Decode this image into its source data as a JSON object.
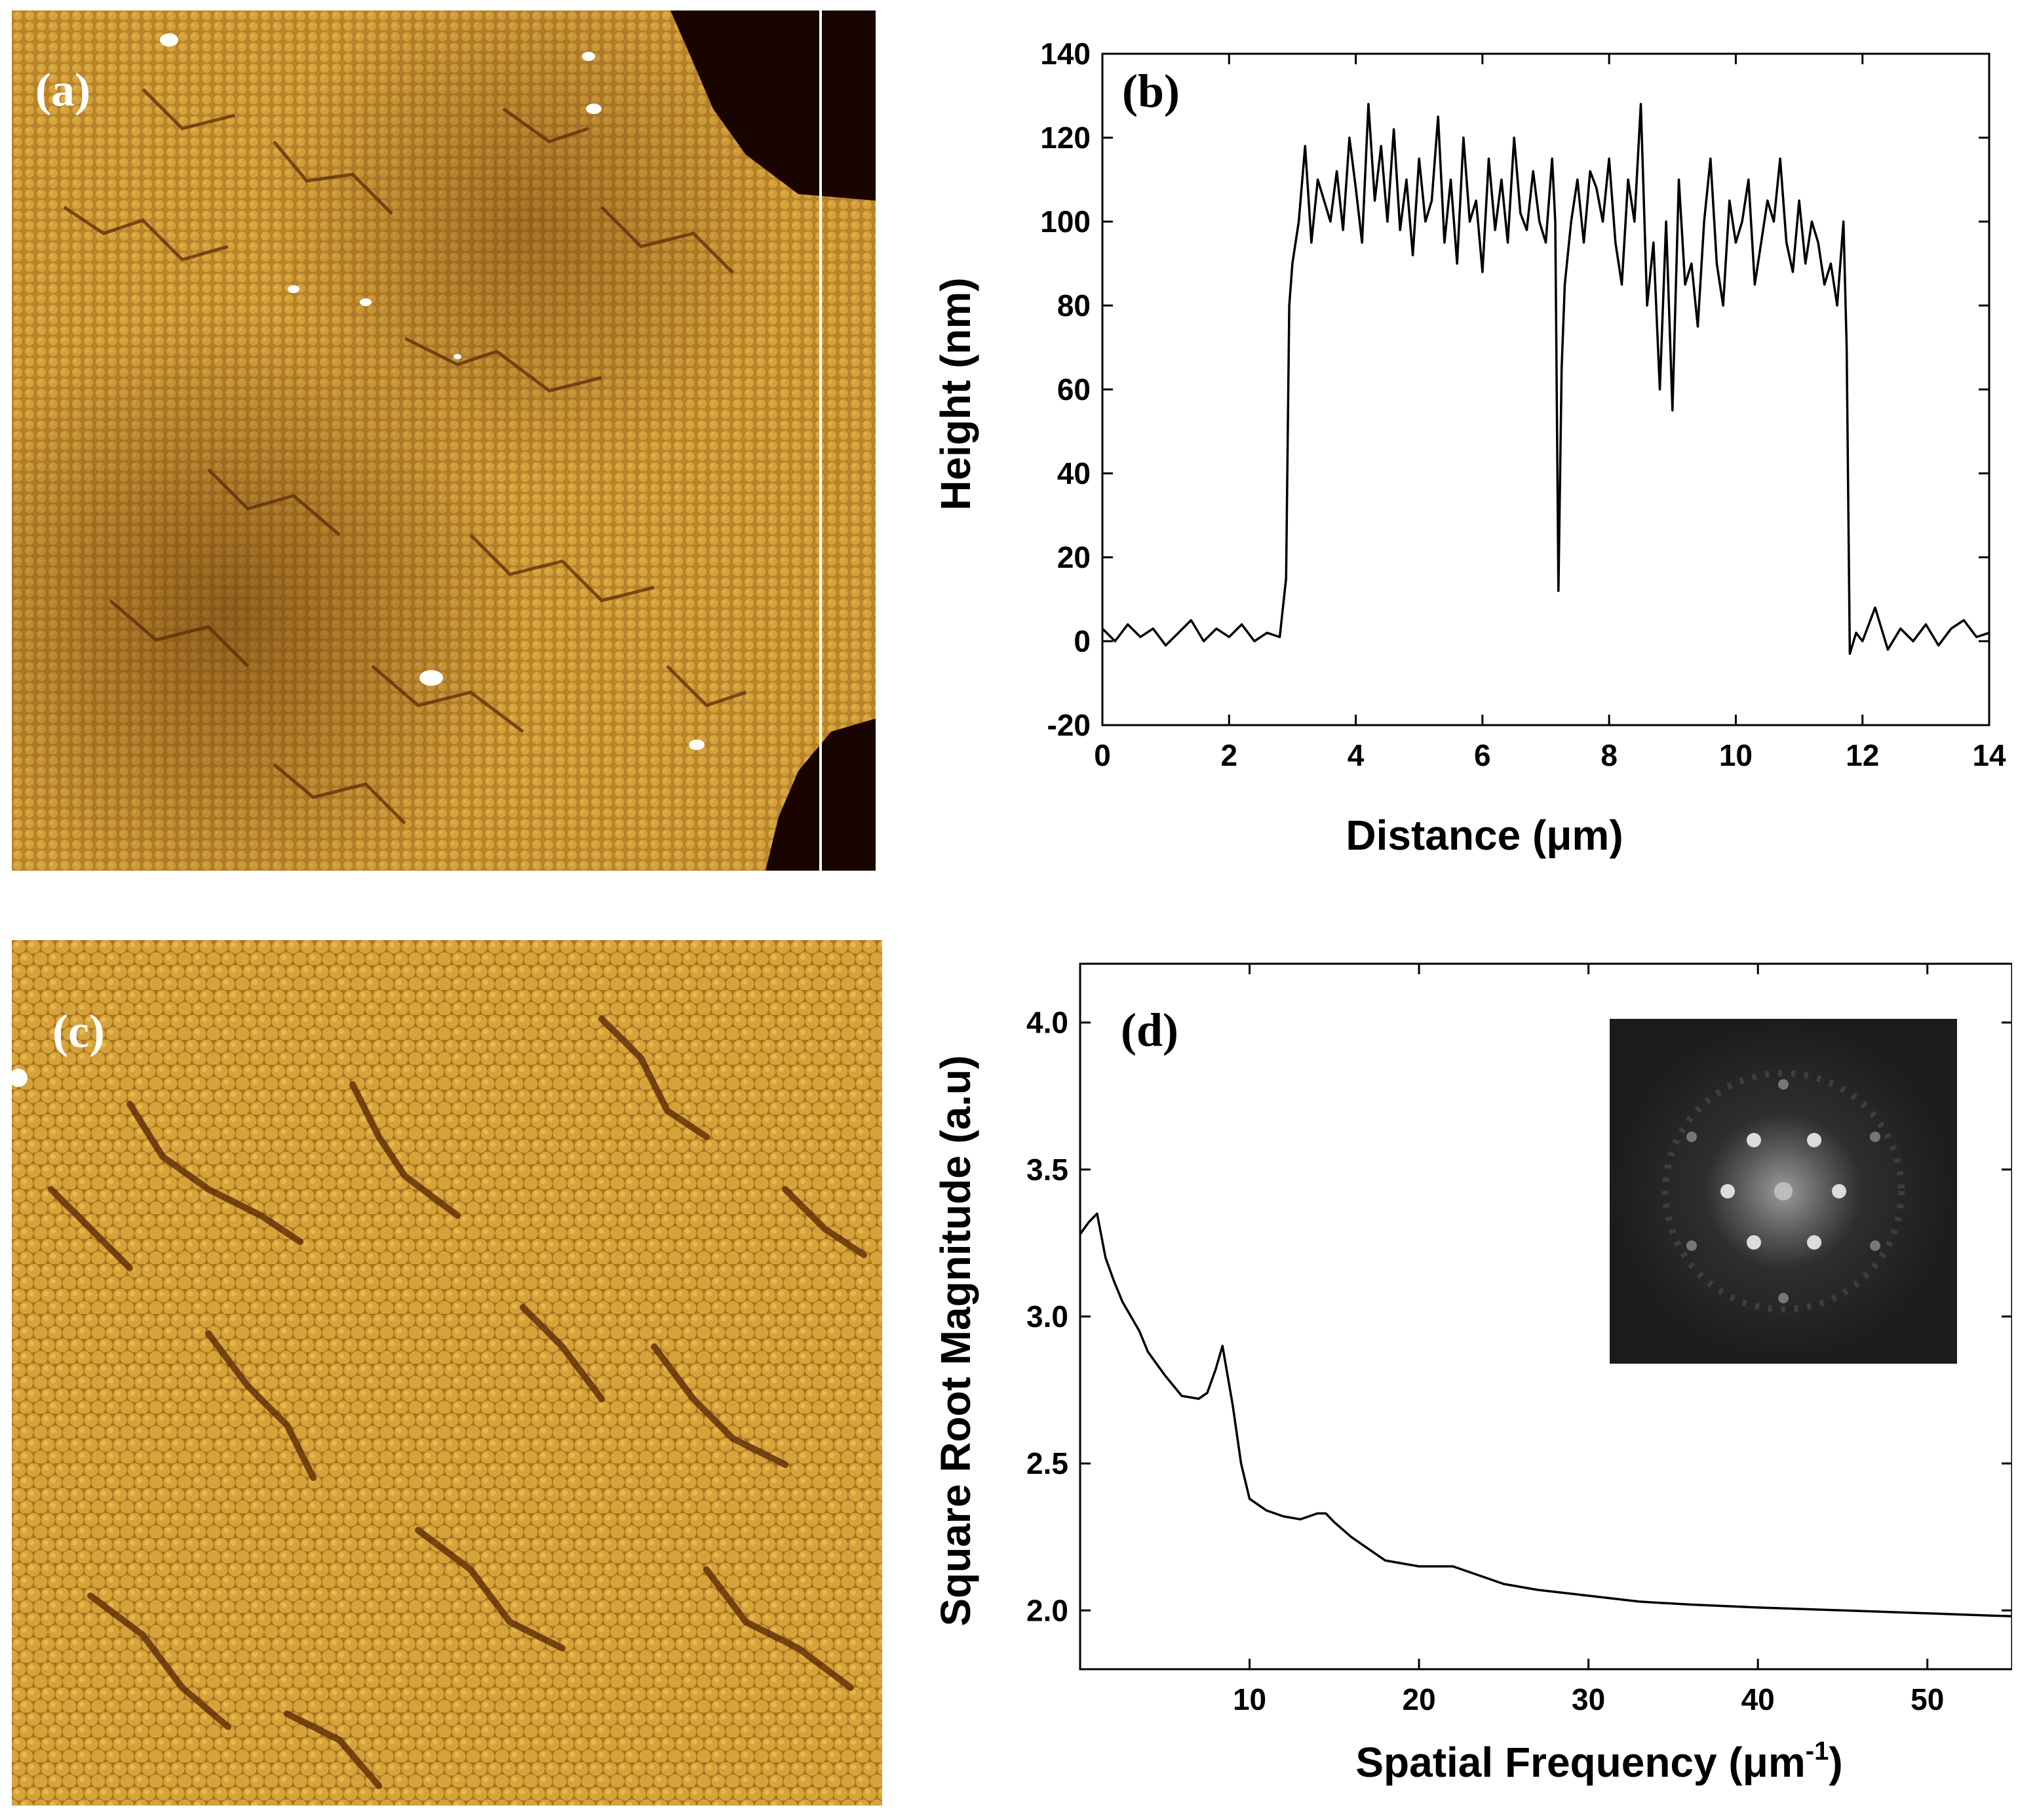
{
  "panels": {
    "a": {
      "label": "(a)"
    },
    "b": {
      "label": "(b)"
    },
    "c": {
      "label": "(c)"
    },
    "d": {
      "label": "(d)"
    }
  },
  "colors": {
    "afm_base": "#c08a2a",
    "afm_light": "#e2b546",
    "afm_dark": "#6b3a0e",
    "afm_hole": "#1a0400",
    "fft_bg": "#1c1c1c",
    "line": "#000000"
  },
  "chart_data": [
    {
      "type": "line",
      "panel": "b",
      "xlabel": "Distance (μm)",
      "ylabel": "Height (nm)",
      "xlim": [
        0,
        14
      ],
      "ylim": [
        -20,
        140
      ],
      "xticks": [
        0,
        2,
        4,
        6,
        8,
        10,
        12,
        14
      ],
      "yticks": [
        -20,
        0,
        20,
        40,
        60,
        80,
        100,
        120,
        140
      ],
      "grid": false,
      "series": [
        {
          "x": [
            0.0,
            0.2,
            0.4,
            0.6,
            0.8,
            1.0,
            1.2,
            1.4,
            1.6,
            1.8,
            2.0,
            2.2,
            2.4,
            2.6,
            2.8,
            2.9,
            2.95,
            3.0,
            3.1,
            3.2,
            3.3,
            3.4,
            3.5,
            3.6,
            3.7,
            3.8,
            3.9,
            4.0,
            4.1,
            4.2,
            4.3,
            4.4,
            4.5,
            4.6,
            4.7,
            4.8,
            4.9,
            5.0,
            5.1,
            5.2,
            5.3,
            5.4,
            5.5,
            5.6,
            5.7,
            5.8,
            5.9,
            6.0,
            6.1,
            6.2,
            6.3,
            6.4,
            6.5,
            6.6,
            6.7,
            6.8,
            6.9,
            7.0,
            7.1,
            7.15,
            7.2,
            7.25,
            7.3,
            7.4,
            7.5,
            7.6,
            7.7,
            7.8,
            7.9,
            8.0,
            8.1,
            8.2,
            8.3,
            8.4,
            8.5,
            8.6,
            8.7,
            8.8,
            8.9,
            9.0,
            9.1,
            9.2,
            9.3,
            9.4,
            9.5,
            9.6,
            9.7,
            9.8,
            9.9,
            10.0,
            10.1,
            10.2,
            10.3,
            10.4,
            10.5,
            10.6,
            10.7,
            10.8,
            10.9,
            11.0,
            11.1,
            11.2,
            11.3,
            11.4,
            11.5,
            11.6,
            11.7,
            11.75,
            11.8,
            11.9,
            12.0,
            12.2,
            12.4,
            12.6,
            12.8,
            13.0,
            13.2,
            13.4,
            13.6,
            13.8,
            14.0
          ],
          "y": [
            3,
            0,
            4,
            1,
            3,
            -1,
            2,
            5,
            0,
            3,
            1,
            4,
            0,
            2,
            1,
            15,
            80,
            90,
            100,
            118,
            95,
            110,
            105,
            100,
            112,
            98,
            120,
            108,
            95,
            128,
            105,
            118,
            100,
            122,
            98,
            110,
            92,
            115,
            100,
            105,
            125,
            95,
            110,
            90,
            120,
            100,
            105,
            88,
            115,
            98,
            110,
            95,
            120,
            102,
            98,
            112,
            100,
            95,
            115,
            100,
            12,
            65,
            85,
            100,
            110,
            95,
            112,
            108,
            100,
            115,
            95,
            85,
            110,
            100,
            128,
            80,
            95,
            60,
            100,
            55,
            110,
            85,
            90,
            75,
            100,
            115,
            90,
            80,
            105,
            95,
            100,
            110,
            85,
            95,
            105,
            100,
            115,
            95,
            88,
            105,
            90,
            100,
            95,
            85,
            90,
            80,
            100,
            70,
            -3,
            2,
            0,
            8,
            -2,
            3,
            0,
            4,
            -1,
            3,
            5,
            1,
            2
          ]
        }
      ]
    },
    {
      "type": "line",
      "panel": "d",
      "xlabel": "Spatial Frequency (μm⁻¹)",
      "ylabel": "Square Root Magnitude (a.u)",
      "xlim": [
        0,
        55
      ],
      "ylim": [
        1.8,
        4.2
      ],
      "xticks": [
        10,
        20,
        30,
        40,
        50
      ],
      "yticks": [
        2.0,
        2.5,
        3.0,
        3.5,
        4.0
      ],
      "grid": false,
      "series": [
        {
          "x": [
            0.0,
            0.5,
            1.0,
            1.5,
            2.0,
            2.5,
            3.0,
            3.5,
            4.0,
            5.0,
            6.0,
            7.0,
            7.5,
            8.0,
            8.4,
            9.0,
            9.5,
            10.0,
            11.0,
            12.0,
            13.0,
            14.0,
            14.5,
            15.0,
            16.0,
            17.0,
            18.0,
            19.0,
            20.0,
            21.0,
            22.0,
            23.0,
            24.0,
            25.0,
            27.0,
            30.0,
            33.0,
            36.0,
            40.0,
            45.0,
            50.0,
            55.0
          ],
          "y": [
            3.28,
            3.32,
            3.35,
            3.2,
            3.12,
            3.05,
            3.0,
            2.95,
            2.88,
            2.8,
            2.73,
            2.72,
            2.74,
            2.82,
            2.9,
            2.7,
            2.5,
            2.38,
            2.34,
            2.32,
            2.31,
            2.33,
            2.33,
            2.3,
            2.25,
            2.21,
            2.17,
            2.16,
            2.15,
            2.15,
            2.15,
            2.13,
            2.11,
            2.09,
            2.07,
            2.05,
            2.03,
            2.02,
            2.01,
            2.0,
            1.99,
            1.98
          ]
        }
      ]
    }
  ]
}
